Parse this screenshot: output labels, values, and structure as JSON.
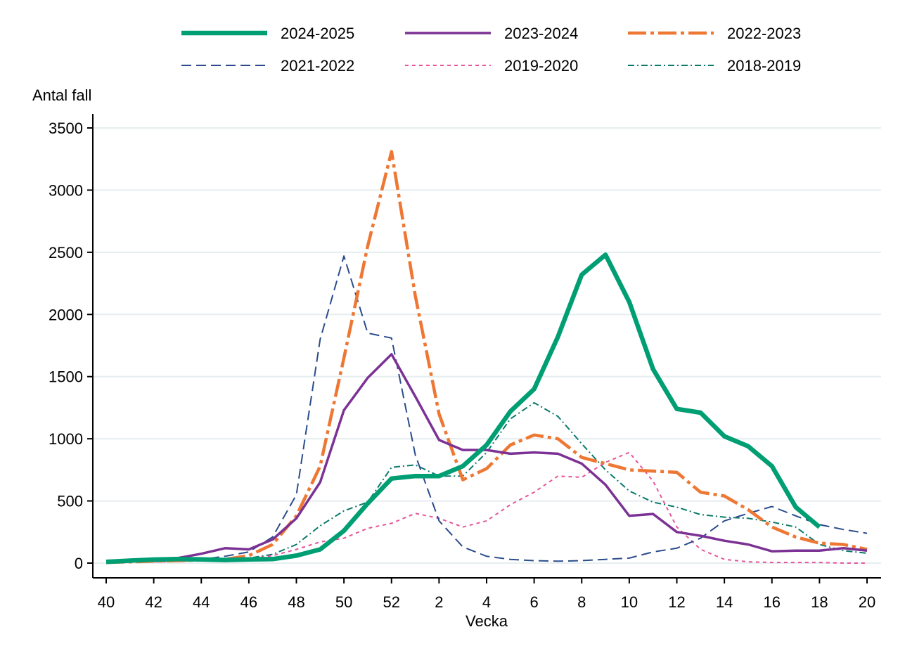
{
  "chart_data": {
    "type": "line",
    "title": "",
    "ylabel": "Antal fall",
    "xlabel": "Vecka",
    "ylim": [
      0,
      3500
    ],
    "yticks": [
      0,
      500,
      1000,
      1500,
      2000,
      2500,
      3000,
      3500
    ],
    "x_ticks": [
      {
        "pos": 0,
        "label": "40"
      },
      {
        "pos": 2,
        "label": "42"
      },
      {
        "pos": 4,
        "label": "44"
      },
      {
        "pos": 6,
        "label": "46"
      },
      {
        "pos": 8,
        "label": "48"
      },
      {
        "pos": 10,
        "label": "50"
      },
      {
        "pos": 12,
        "label": "52"
      },
      {
        "pos": 14,
        "label": "2"
      },
      {
        "pos": 16,
        "label": "4"
      },
      {
        "pos": 18,
        "label": "6"
      },
      {
        "pos": 20,
        "label": "8"
      },
      {
        "pos": 22,
        "label": "10"
      },
      {
        "pos": 24,
        "label": "12"
      },
      {
        "pos": 26,
        "label": "14"
      },
      {
        "pos": 28,
        "label": "16"
      },
      {
        "pos": 30,
        "label": "18"
      },
      {
        "pos": 32,
        "label": "20"
      }
    ],
    "weeks": [
      "40",
      "41",
      "42",
      "43",
      "44",
      "45",
      "46",
      "47",
      "48",
      "49",
      "50",
      "51",
      "52",
      "1",
      "2",
      "3",
      "4",
      "5",
      "6",
      "7",
      "8",
      "9",
      "10",
      "11",
      "12",
      "13",
      "14",
      "15",
      "16",
      "17",
      "18",
      "19",
      "20"
    ],
    "legend_position": "top",
    "series": [
      {
        "name": "2024-2025",
        "color": "#009E73",
        "width": 6.5,
        "dash": "",
        "values": [
          10,
          20,
          28,
          33,
          30,
          25,
          30,
          32,
          60,
          110,
          260,
          480,
          680,
          700,
          700,
          780,
          950,
          1220,
          1400,
          1820,
          2320,
          2480,
          2100,
          1560,
          1240,
          1210,
          1020,
          940,
          780,
          450,
          290
        ]
      },
      {
        "name": "2023-2024",
        "color": "#7B3294",
        "width": 3.5,
        "dash": "",
        "values": [
          10,
          20,
          30,
          40,
          75,
          120,
          110,
          190,
          360,
          650,
          1230,
          1490,
          1680,
          1340,
          990,
          910,
          910,
          880,
          890,
          880,
          800,
          630,
          380,
          395,
          250,
          220,
          180,
          150,
          95,
          100,
          100,
          120,
          100
        ]
      },
      {
        "name": "2022-2023",
        "color": "#EE7733",
        "width": 4.5,
        "dash": "26 6 5 6",
        "values": [
          5,
          10,
          15,
          20,
          25,
          30,
          60,
          150,
          380,
          780,
          1650,
          2550,
          3310,
          2150,
          1200,
          670,
          760,
          950,
          1030,
          1000,
          850,
          800,
          750,
          740,
          730,
          570,
          540,
          430,
          290,
          210,
          160,
          150,
          110
        ]
      },
      {
        "name": "2021-2022",
        "color": "#2B4C8C",
        "width": 2,
        "dash": "14 7",
        "values": [
          5,
          10,
          15,
          20,
          30,
          55,
          90,
          210,
          550,
          1800,
          2470,
          1850,
          1810,
          870,
          340,
          130,
          55,
          30,
          20,
          15,
          20,
          30,
          40,
          90,
          120,
          200,
          340,
          400,
          455,
          380,
          310,
          270,
          240
        ]
      },
      {
        "name": "2019-2020",
        "color": "#E7549A",
        "width": 2,
        "dash": "5 5",
        "values": [
          5,
          10,
          10,
          15,
          20,
          30,
          35,
          60,
          110,
          170,
          200,
          280,
          320,
          400,
          360,
          290,
          340,
          470,
          570,
          700,
          690,
          810,
          890,
          660,
          290,
          110,
          30,
          10,
          5,
          5,
          5,
          0,
          0
        ]
      },
      {
        "name": "2018-2019",
        "color": "#0B7A6B",
        "width": 2,
        "dash": "9 4 2 4",
        "values": [
          5,
          10,
          10,
          15,
          20,
          25,
          40,
          70,
          150,
          300,
          420,
          490,
          770,
          790,
          700,
          700,
          890,
          1160,
          1290,
          1180,
          960,
          750,
          580,
          490,
          450,
          390,
          370,
          360,
          330,
          290,
          150,
          100,
          80
        ]
      }
    ]
  }
}
